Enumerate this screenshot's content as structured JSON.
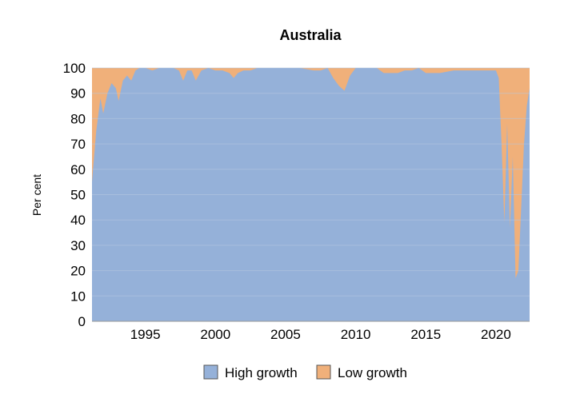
{
  "chart_data": {
    "type": "area",
    "title": "Australia",
    "xlabel": "",
    "ylabel": "Per cent",
    "xlim": [
      1991.2,
      2022.4
    ],
    "ylim": [
      0,
      100
    ],
    "y_ticks": [
      0,
      10,
      20,
      30,
      40,
      50,
      60,
      70,
      80,
      90,
      100
    ],
    "x_ticks": [
      1995,
      2000,
      2005,
      2010,
      2015,
      2020
    ],
    "stacked": true,
    "legend_position": "bottom",
    "grid": true,
    "colors": {
      "high": "#95b1d9",
      "low": "#f0b07a",
      "grid": "#b8c8e0"
    },
    "x": [
      1991.2,
      1991.5,
      1991.8,
      1992.0,
      1992.3,
      1992.6,
      1992.9,
      1993.1,
      1993.4,
      1993.7,
      1994.0,
      1994.3,
      1994.6,
      1995.0,
      1995.5,
      1996.0,
      1996.5,
      1997.0,
      1997.4,
      1997.7,
      1998.0,
      1998.3,
      1998.6,
      1999.0,
      1999.5,
      2000.0,
      2000.5,
      2001.0,
      2001.3,
      2001.6,
      2002.0,
      2002.5,
      2003.0,
      2004.0,
      2005.0,
      2006.0,
      2007.0,
      2007.5,
      2008.0,
      2008.4,
      2008.8,
      2009.2,
      2009.6,
      2010.0,
      2010.5,
      2011.0,
      2011.5,
      2012.0,
      2012.5,
      2013.0,
      2013.5,
      2014.0,
      2014.5,
      2015.0,
      2015.5,
      2016.0,
      2017.0,
      2018.0,
      2019.0,
      2019.5,
      2020.0,
      2020.2,
      2020.4,
      2020.6,
      2020.8,
      2021.0,
      2021.2,
      2021.4,
      2021.6,
      2021.8,
      2022.0,
      2022.2,
      2022.4
    ],
    "series": [
      {
        "name": "High growth",
        "values": [
          55,
          75,
          88,
          82,
          90,
          94,
          92,
          87,
          95,
          97,
          95,
          99,
          100,
          100,
          99,
          100,
          100,
          100,
          99,
          95,
          99,
          99,
          95,
          99,
          100,
          99,
          99,
          98,
          96,
          98,
          99,
          99,
          100,
          100,
          100,
          100,
          99,
          99,
          100,
          96,
          93,
          91,
          97,
          100,
          100,
          100,
          100,
          98,
          98,
          98,
          99,
          99,
          100,
          98,
          98,
          98,
          99,
          99,
          99,
          99,
          99,
          96,
          70,
          39,
          78,
          37,
          65,
          17,
          20,
          45,
          70,
          85,
          92
        ]
      },
      {
        "name": "Low growth",
        "values": [
          45,
          25,
          12,
          18,
          10,
          6,
          8,
          13,
          5,
          3,
          5,
          1,
          0,
          0,
          1,
          0,
          0,
          0,
          1,
          5,
          1,
          1,
          5,
          1,
          0,
          1,
          1,
          2,
          4,
          2,
          1,
          1,
          0,
          0,
          0,
          0,
          1,
          1,
          0,
          4,
          7,
          9,
          3,
          0,
          0,
          0,
          0,
          2,
          2,
          2,
          1,
          1,
          0,
          2,
          2,
          2,
          1,
          1,
          1,
          1,
          1,
          4,
          30,
          61,
          22,
          63,
          35,
          83,
          80,
          55,
          30,
          15,
          8
        ]
      }
    ]
  }
}
